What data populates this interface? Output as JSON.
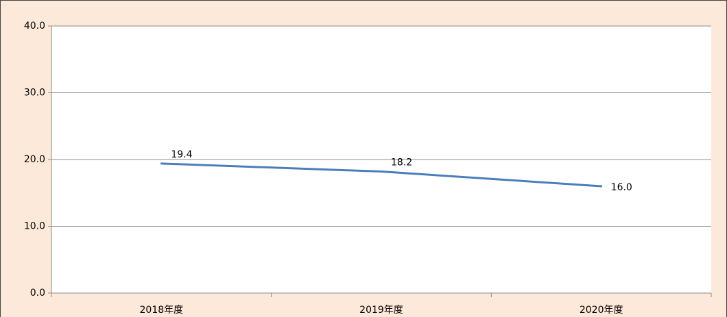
{
  "chart_data": {
    "type": "line",
    "categories": [
      "2018年度",
      "2019年度",
      "2020年度"
    ],
    "series": [
      {
        "color": "#4a7ebb",
        "values": [
          19.4,
          18.2,
          16
        ],
        "value_labels": [
          "19.4",
          "18.2",
          "16.0"
        ]
      }
    ],
    "ylim": [
      0,
      40
    ],
    "yticks": [
      {
        "value": 0,
        "label": "0.0"
      },
      {
        "value": 10,
        "label": "10.0"
      },
      {
        "value": 20,
        "label": "20.0"
      },
      {
        "value": 30,
        "label": "30.0"
      },
      {
        "value": 40,
        "label": "40.0"
      }
    ],
    "grid": true
  }
}
